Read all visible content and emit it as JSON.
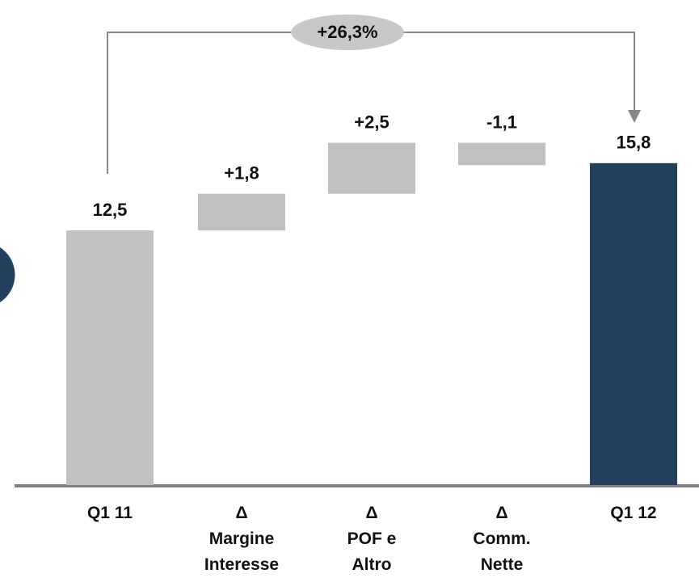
{
  "chart_data": {
    "type": "waterfall",
    "categories": [
      "Q1 11",
      "Δ\nMargine\nInteresse",
      "Δ\nPOF e\nAltro",
      "Δ\nComm.\nNette",
      "Q1 12"
    ],
    "values": [
      12.5,
      1.8,
      2.5,
      -1.1,
      15.8
    ],
    "value_labels": [
      "12,5",
      "+1,8",
      "+2,5",
      "-1,1",
      "15,8"
    ],
    "measure": [
      "total",
      "relative",
      "relative",
      "relative",
      "total"
    ],
    "colors": [
      "#c0c0c0",
      "#c0c0c0",
      "#c0c0c0",
      "#c0c0c0",
      "#253f5e"
    ],
    "annotation": "+26,3%"
  }
}
